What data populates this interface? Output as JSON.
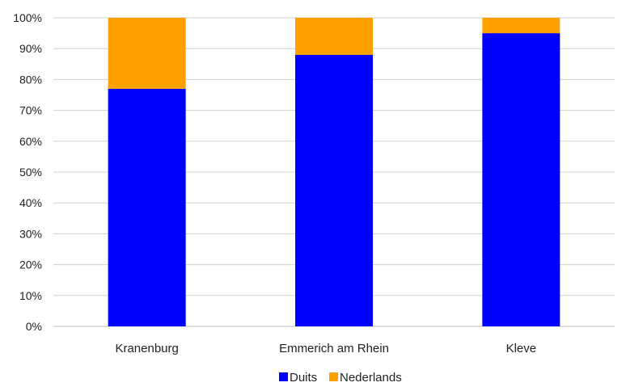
{
  "chart_data": {
    "type": "bar",
    "stacked": true,
    "categories": [
      "Kranenburg",
      "Emmerich am Rhein",
      "Kleve"
    ],
    "series": [
      {
        "name": "Duits",
        "values": [
          77,
          88,
          95
        ],
        "color": "#0000ff"
      },
      {
        "name": "Nederlands",
        "values": [
          23,
          12,
          5
        ],
        "color": "#ffa000"
      }
    ],
    "y_ticks": [
      "0%",
      "10%",
      "20%",
      "30%",
      "40%",
      "50%",
      "60%",
      "70%",
      "80%",
      "90%",
      "100%"
    ],
    "ylim": [
      0,
      100
    ],
    "grid": true,
    "legend_position": "bottom"
  }
}
